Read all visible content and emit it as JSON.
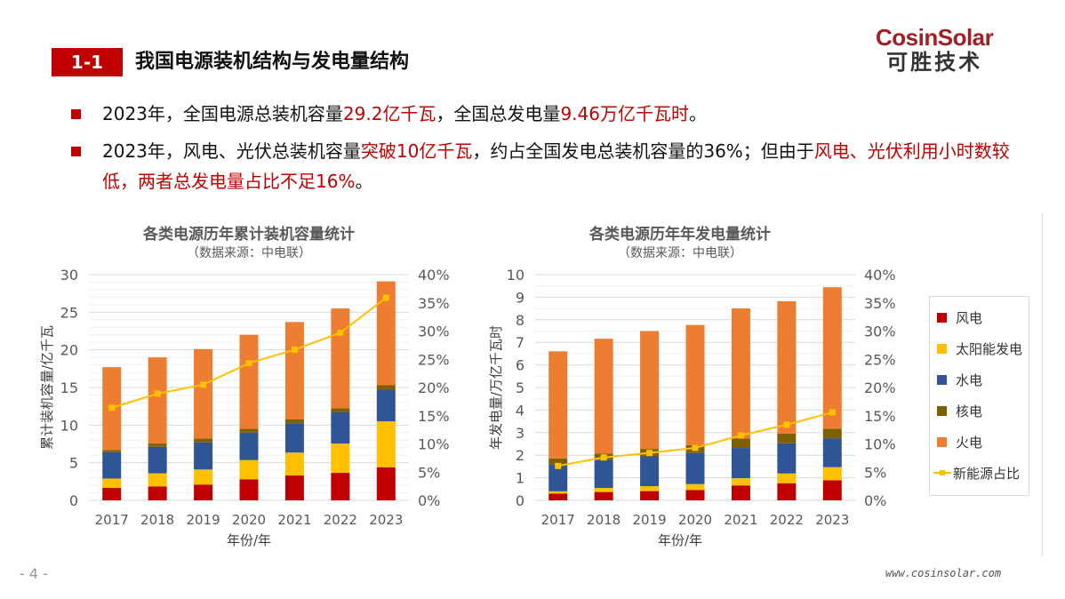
{
  "header": {
    "section_no": "1-1",
    "title": "我国电源装机结构与发电量结构",
    "logo_en": "CosinSolar",
    "logo_cn": "可胜技术"
  },
  "bullets": [
    {
      "parts": [
        {
          "t": "2023年，全国电源总装机容量",
          "red": false
        },
        {
          "t": "29.2亿千瓦",
          "red": true
        },
        {
          "t": "，全国总发电量",
          "red": false
        },
        {
          "t": "9.46万亿千瓦时",
          "red": true
        },
        {
          "t": "。",
          "red": false
        }
      ]
    },
    {
      "parts": [
        {
          "t": "2023年，风电、光伏总装机容量",
          "red": false
        },
        {
          "t": "突破10亿千瓦",
          "red": true
        },
        {
          "t": "，约占全国发电总装机容量的36%；但由于",
          "red": false
        },
        {
          "t": "风电、光伏利用小时数较低，两者总发电量占比不足16%",
          "red": true
        },
        {
          "t": "。",
          "red": false
        }
      ]
    }
  ],
  "footer": {
    "page": "- 4 -",
    "url": "www.cosinsolar.com"
  },
  "colors": {
    "wind": "#c00000",
    "solar": "#ffc000",
    "hydro": "#2f5597",
    "nuclear": "#7f6000",
    "thermal": "#ed7d31",
    "share": "#ffc000",
    "accent": "#c00000"
  },
  "legend": [
    "风电",
    "太阳能发电",
    "水电",
    "核电",
    "火电",
    "新能源占比"
  ],
  "chart_data": [
    {
      "type": "bar",
      "stacked": true,
      "title": "各类电源历年累计装机容量统计",
      "subtitle": "（数据来源：中电联）",
      "xlabel": "年份/年",
      "ylabel": "累计装机容量/亿千瓦",
      "ylim": [
        0,
        30
      ],
      "yticks": [
        0,
        5,
        10,
        15,
        20,
        25,
        30
      ],
      "y2lim": [
        0,
        40
      ],
      "y2ticks": [
        "0%",
        "5%",
        "10%",
        "15%",
        "20%",
        "25%",
        "30%",
        "35%",
        "40%"
      ],
      "grid": true,
      "categories": [
        "2017",
        "2018",
        "2019",
        "2020",
        "2021",
        "2022",
        "2023"
      ],
      "series": [
        {
          "name": "风电",
          "values": [
            1.65,
            1.85,
            2.1,
            2.8,
            3.3,
            3.65,
            4.4
          ]
        },
        {
          "name": "太阳能发电",
          "values": [
            1.25,
            1.75,
            2.0,
            2.55,
            3.05,
            3.9,
            6.1
          ]
        },
        {
          "name": "水电",
          "values": [
            3.5,
            3.5,
            3.6,
            3.65,
            3.9,
            4.15,
            4.2
          ]
        },
        {
          "name": "核电",
          "values": [
            0.3,
            0.45,
            0.5,
            0.5,
            0.5,
            0.55,
            0.6
          ]
        },
        {
          "name": "火电",
          "values": [
            11.0,
            11.45,
            11.9,
            12.5,
            12.95,
            13.25,
            13.8
          ]
        }
      ],
      "line": {
        "name": "新能源占比",
        "axis": "right",
        "values": [
          16.4,
          18.9,
          20.5,
          24.3,
          26.7,
          29.7,
          35.9
        ]
      }
    },
    {
      "type": "bar",
      "stacked": true,
      "title": "各类电源历年年发电量统计",
      "subtitle": "（数据来源：中电联）",
      "xlabel": "年份/年",
      "ylabel": "年发电量/万亿千瓦时",
      "ylim": [
        0,
        10
      ],
      "yticks": [
        0,
        1,
        2,
        3,
        4,
        5,
        6,
        7,
        8,
        9,
        10
      ],
      "y2lim": [
        0,
        40
      ],
      "y2ticks": [
        "0%",
        "5%",
        "10%",
        "15%",
        "20%",
        "25%",
        "30%",
        "35%",
        "40%"
      ],
      "grid": true,
      "legend_position": "right",
      "categories": [
        "2017",
        "2018",
        "2019",
        "2020",
        "2021",
        "2022",
        "2023"
      ],
      "series": [
        {
          "name": "风电",
          "values": [
            0.3,
            0.37,
            0.41,
            0.46,
            0.66,
            0.76,
            0.89
          ]
        },
        {
          "name": "太阳能发电",
          "values": [
            0.1,
            0.18,
            0.22,
            0.26,
            0.32,
            0.43,
            0.58
          ]
        },
        {
          "name": "水电",
          "values": [
            1.19,
            1.25,
            1.32,
            1.38,
            1.34,
            1.34,
            1.28
          ]
        },
        {
          "name": "核电",
          "values": [
            0.27,
            0.27,
            0.33,
            0.35,
            0.42,
            0.43,
            0.43
          ]
        },
        {
          "name": "火电",
          "values": [
            4.74,
            5.09,
            5.22,
            5.32,
            5.76,
            5.86,
            6.26
          ]
        }
      ],
      "line": {
        "name": "新能源占比",
        "axis": "right",
        "values": [
          6.1,
          7.6,
          8.4,
          9.3,
          11.5,
          13.4,
          15.6
        ]
      }
    }
  ]
}
